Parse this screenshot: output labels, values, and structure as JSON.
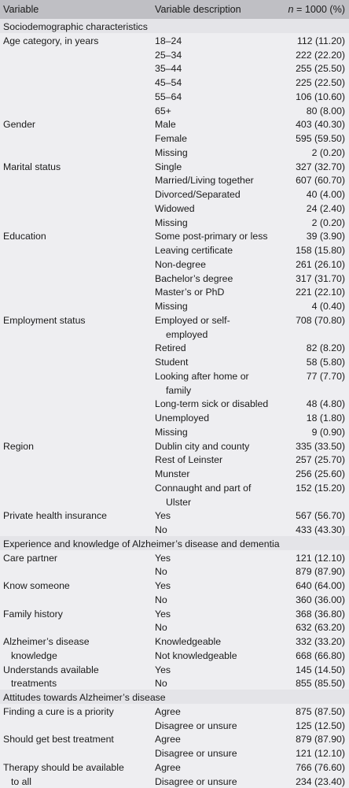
{
  "header": {
    "col1": "Variable",
    "col2": "Variable description",
    "col3_italic": "n",
    "col3_rest": " = 1000 (%)"
  },
  "rows": [
    {
      "type": "section",
      "text": "Sociodemographic characteristics"
    },
    {
      "v": "Age category, in years",
      "d": "18–24",
      "n": "112 (11.20)"
    },
    {
      "v": "",
      "d": "25–34",
      "n": "222 (22.20)"
    },
    {
      "v": "",
      "d": "35–44",
      "n": "255 (25.50)"
    },
    {
      "v": "",
      "d": "45–54",
      "n": "225 (22.50)"
    },
    {
      "v": "",
      "d": "55–64",
      "n": "106 (10.60)"
    },
    {
      "v": "",
      "d": "65+",
      "n": "80 (8.00)"
    },
    {
      "v": "Gender",
      "d": "Male",
      "n": "403 (40.30)"
    },
    {
      "v": "",
      "d": "Female",
      "n": "595 (59.50)"
    },
    {
      "v": "",
      "d": "Missing",
      "n": "2 (0.20)"
    },
    {
      "v": "Marital status",
      "d": "Single",
      "n": "327 (32.70)"
    },
    {
      "v": "",
      "d": "Married/Living together",
      "n": "607 (60.70)"
    },
    {
      "v": "",
      "d": "Divorced/Separated",
      "n": "40 (4.00)"
    },
    {
      "v": "",
      "d": "Widowed",
      "n": "24 (2.40)"
    },
    {
      "v": "",
      "d": "Missing",
      "n": "2 (0.20)"
    },
    {
      "v": "Education",
      "d": "Some post-primary or less",
      "n": "39 (3.90)"
    },
    {
      "v": "",
      "d": "Leaving certificate",
      "n": "158 (15.80)"
    },
    {
      "v": "",
      "d": "Non-degree",
      "n": "261 (26.10)"
    },
    {
      "v": "",
      "d": "Bachelor’s degree",
      "n": "317 (31.70)"
    },
    {
      "v": "",
      "d": "Master’s or PhD",
      "n": "221 (22.10)"
    },
    {
      "v": "",
      "d": "Missing",
      "n": "4 (0.40)"
    },
    {
      "v": "Employment status",
      "d": "Employed or self-",
      "n": "708 (70.80)"
    },
    {
      "v": "",
      "d": "employed",
      "n": "",
      "dIndent": true
    },
    {
      "v": "",
      "d": "Retired",
      "n": "82 (8.20)"
    },
    {
      "v": "",
      "d": "Student",
      "n": "58 (5.80)"
    },
    {
      "v": "",
      "d": "Looking after home or",
      "n": "77 (7.70)"
    },
    {
      "v": "",
      "d": "family",
      "n": "",
      "dIndent": true
    },
    {
      "v": "",
      "d": "Long-term sick or disabled",
      "n": "48 (4.80)"
    },
    {
      "v": "",
      "d": "Unemployed",
      "n": "18 (1.80)"
    },
    {
      "v": "",
      "d": "Missing",
      "n": "9 (0.90)"
    },
    {
      "v": "Region",
      "d": "Dublin city and county",
      "n": "335 (33.50)"
    },
    {
      "v": "",
      "d": "Rest of Leinster",
      "n": "257 (25.70)"
    },
    {
      "v": "",
      "d": "Munster",
      "n": "256 (25.60)"
    },
    {
      "v": "",
      "d": "Connaught and part of",
      "n": "152 (15.20)"
    },
    {
      "v": "",
      "d": "Ulster",
      "n": "",
      "dIndent": true
    },
    {
      "v": "Private health insurance",
      "d": "Yes",
      "n": "567 (56.70)"
    },
    {
      "v": "",
      "d": "No",
      "n": "433 (43.30)"
    },
    {
      "type": "section",
      "text": "Experience and knowledge of Alzheimer’s disease and dementia"
    },
    {
      "v": "Care partner",
      "d": "Yes",
      "n": "121 (12.10)"
    },
    {
      "v": "",
      "d": "No",
      "n": "879 (87.90)"
    },
    {
      "v": "Know someone",
      "d": "Yes",
      "n": "640 (64.00)"
    },
    {
      "v": "",
      "d": "No",
      "n": "360 (36.00)"
    },
    {
      "v": "Family history",
      "d": "Yes",
      "n": "368 (36.80)"
    },
    {
      "v": "",
      "d": "No",
      "n": "632 (63.20)"
    },
    {
      "v": "Alzheimer’s disease",
      "d": "Knowledgeable",
      "n": "332 (33.20)"
    },
    {
      "v": "knowledge",
      "d": "Not knowledgeable",
      "n": "668 (66.80)",
      "vIndent": true
    },
    {
      "v": "Understands available",
      "d": "Yes",
      "n": "145 (14.50)"
    },
    {
      "v": "treatments",
      "d": "No",
      "n": "855 (85.50)",
      "vIndent": true
    },
    {
      "type": "section",
      "text": "Attitudes towards Alzheimer’s disease"
    },
    {
      "v": "Finding a cure is a priority",
      "d": "Agree",
      "n": "875 (87.50)"
    },
    {
      "v": "",
      "d": "Disagree or unsure",
      "n": "125 (12.50)"
    },
    {
      "v": "Should get best treatment",
      "d": "Agree",
      "n": "879 (87.90)"
    },
    {
      "v": "",
      "d": "Disagree or unsure",
      "n": "121 (12.10)"
    },
    {
      "v": "Therapy should be available",
      "d": "Agree",
      "n": "766 (76.60)"
    },
    {
      "v": "to all",
      "d": "Disagree or unsure",
      "n": "234 (23.40)",
      "vIndent": true
    }
  ]
}
